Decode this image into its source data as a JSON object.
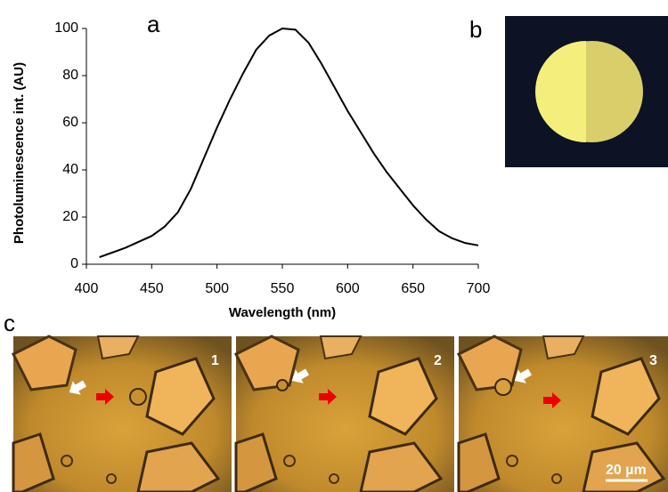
{
  "chart_data": {
    "type": "line",
    "panel_label": "a",
    "x_label": "Wavelength (nm)",
    "y_label": "Photoluminescence int. (AU)",
    "x": [
      410,
      420,
      430,
      440,
      450,
      460,
      470,
      480,
      490,
      500,
      510,
      520,
      530,
      540,
      550,
      560,
      570,
      580,
      590,
      600,
      610,
      620,
      630,
      640,
      650,
      660,
      670,
      680,
      690,
      700
    ],
    "values": [
      3,
      5,
      7,
      9.5,
      12,
      16,
      22,
      32,
      45,
      58,
      70,
      81,
      91,
      97,
      100,
      99.5,
      94,
      85,
      75,
      65,
      56,
      47,
      39,
      32,
      25,
      19,
      14,
      11,
      9,
      8
    ],
    "color": "#000000",
    "xlim": [
      400,
      700
    ],
    "ylim": [
      0,
      100
    ],
    "xticks": [
      400,
      450,
      500,
      550,
      600,
      650,
      700
    ],
    "yticks": [
      0,
      20,
      40,
      60,
      80,
      100
    ],
    "grid": false
  },
  "panel_b": {
    "label": "b"
  },
  "panel_c": {
    "label": "c",
    "frames": [
      "1",
      "2",
      "3"
    ],
    "scale_bar": "20 µm"
  }
}
